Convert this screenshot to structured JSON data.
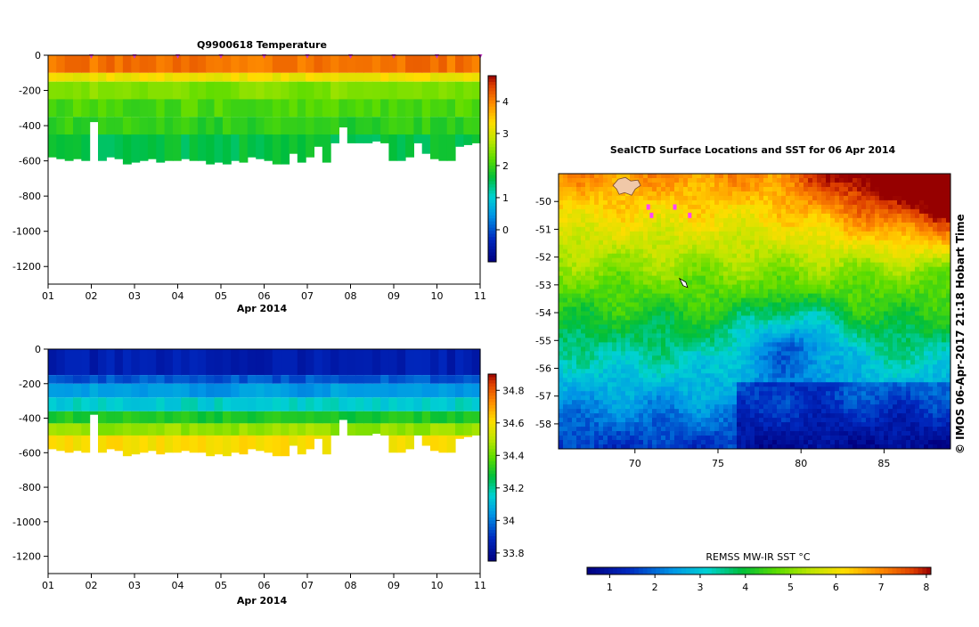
{
  "chart_data": [
    {
      "type": "heatmap",
      "title": "Q9900618  Temperature",
      "xlabel": "Apr 2014",
      "ylabel": "",
      "x_ticks": [
        "01",
        "02",
        "03",
        "04",
        "05",
        "06",
        "07",
        "08",
        "09",
        "10",
        "11"
      ],
      "y_ticks": [
        "0",
        "-200",
        "-400",
        "-600",
        "-800",
        "-1000",
        "-1200"
      ],
      "ylim": [
        -1300,
        0
      ],
      "colorbar": {
        "ticks": [
          "0",
          "1",
          "2",
          "3",
          "4"
        ],
        "range": [
          -1,
          4.8
        ]
      },
      "profile_max_depths": [
        580,
        590,
        600,
        590,
        600,
        380,
        600,
        580,
        590,
        620,
        610,
        600,
        590,
        610,
        600,
        600,
        590,
        600,
        600,
        620,
        610,
        620,
        600,
        610,
        580,
        590,
        600,
        620,
        620,
        560,
        610,
        580,
        520,
        610,
        500,
        410,
        500,
        500,
        500,
        490,
        500,
        600,
        600,
        580,
        500,
        560,
        590,
        600,
        600,
        520,
        510,
        500
      ],
      "profile_marker_days": [
        "02",
        "03",
        "04",
        "05",
        "06",
        "07",
        "08",
        "09",
        "10",
        "11"
      ],
      "marker_color": "#cc33cc",
      "layers": [
        {
          "depth_to": 100,
          "value": 4.1
        },
        {
          "depth_to": 150,
          "value": 3.2
        },
        {
          "depth_to": 250,
          "value": 2.4
        },
        {
          "depth_to": 350,
          "value": 2.1
        },
        {
          "depth_to": 450,
          "value": 1.9
        },
        {
          "depth_to": 650,
          "value": 1.6
        }
      ]
    },
    {
      "type": "heatmap",
      "title": "",
      "xlabel": "Apr 2014",
      "ylabel": "",
      "x_ticks": [
        "01",
        "02",
        "03",
        "04",
        "05",
        "06",
        "07",
        "08",
        "09",
        "10",
        "11"
      ],
      "y_ticks": [
        "0",
        "-200",
        "-400",
        "-600",
        "-800",
        "-1000",
        "-1200"
      ],
      "ylim": [
        -1300,
        0
      ],
      "colorbar": {
        "ticks": [
          "33.8",
          "34",
          "34.2",
          "34.4",
          "34.6",
          "34.8"
        ],
        "range": [
          33.75,
          34.9
        ]
      },
      "layers": [
        {
          "depth_to": 150,
          "value": 33.85
        },
        {
          "depth_to": 200,
          "value": 33.95
        },
        {
          "depth_to": 280,
          "value": 34.05
        },
        {
          "depth_to": 360,
          "value": 34.15
        },
        {
          "depth_to": 430,
          "value": 34.3
        },
        {
          "depth_to": 500,
          "value": 34.45
        },
        {
          "depth_to": 650,
          "value": 34.6
        }
      ]
    },
    {
      "type": "heatmap",
      "title": "SealCTD Surface Locations and SST for 06 Apr 2014",
      "x_ticks": [
        "70",
        "75",
        "80",
        "85"
      ],
      "y_ticks": [
        "-50",
        "-51",
        "-52",
        "-53",
        "-54",
        "-55",
        "-56",
        "-57",
        "-58"
      ],
      "xlim": [
        65.4,
        89.0
      ],
      "ylim": [
        -58.9,
        -49.0
      ],
      "colorbar": {
        "label": "REMSS MW-IR SST °C",
        "ticks": [
          "1",
          "2",
          "3",
          "4",
          "5",
          "6",
          "7",
          "8"
        ],
        "range": [
          0.5,
          8.1
        ]
      },
      "credit": "© IMOS 06-Apr-2017 21:18 Hobart Time",
      "markers": [
        {
          "lon": 72.9,
          "lat": -52.9,
          "color": "#ffffff"
        },
        {
          "lon": 70.8,
          "lat": -50.2,
          "color": "#ff44ff"
        },
        {
          "lon": 71.0,
          "lat": -50.5,
          "color": "#ff44ff"
        },
        {
          "lon": 72.4,
          "lat": -50.2,
          "color": "#ff44ff"
        },
        {
          "lon": 73.3,
          "lat": -50.5,
          "color": "#ff44ff"
        }
      ]
    }
  ]
}
